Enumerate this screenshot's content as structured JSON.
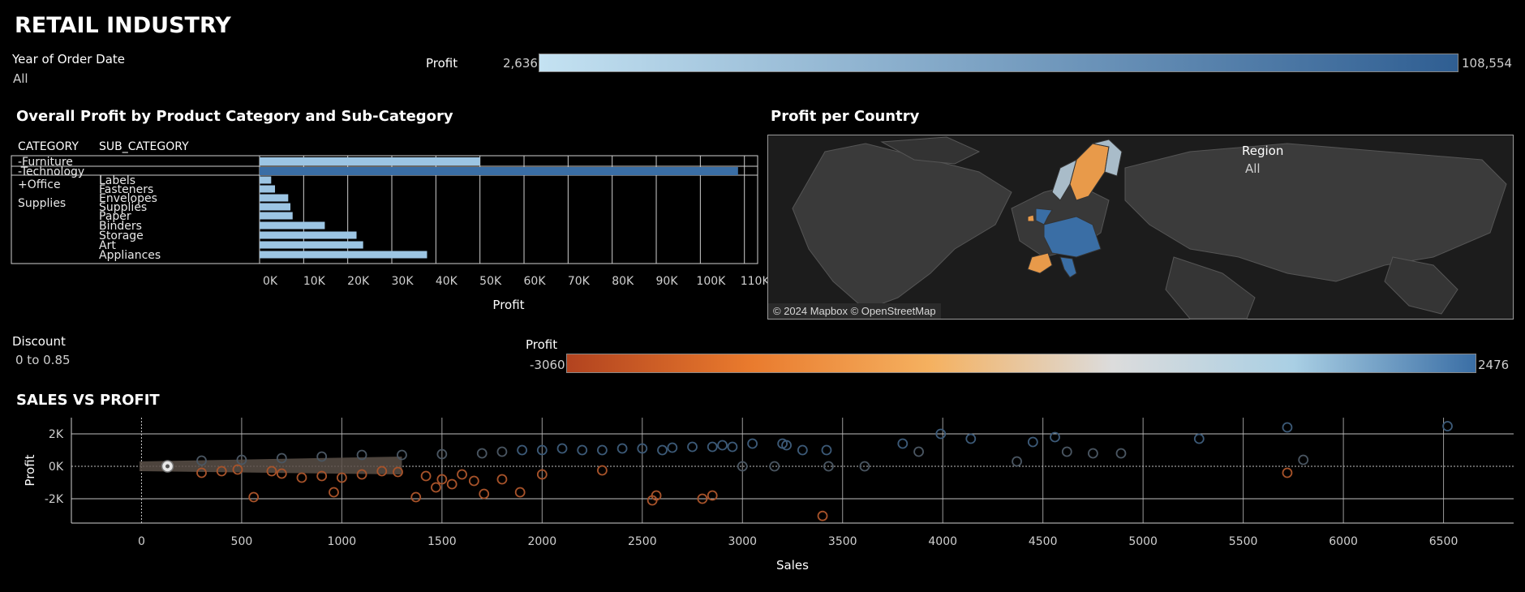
{
  "dashboard": {
    "title": "RETAIL INDUSTRY"
  },
  "filters": {
    "year": {
      "label": "Year of Order Date",
      "value": "All"
    },
    "discount": {
      "label": "Discount",
      "value": "0 to 0.85"
    },
    "region": {
      "label": "Region",
      "value": "All"
    }
  },
  "legend_top": {
    "label": "Profit",
    "min": "2,636",
    "max": "108,554",
    "colors": [
      "#c4e2f2",
      "#2f5e92"
    ]
  },
  "legend_mid": {
    "label": "Profit",
    "min": "-3060",
    "max": "2476",
    "colors": [
      "#b2431f",
      "#e97a2d",
      "#f5b160",
      "#dcdcdc",
      "#a9cfe4",
      "#3a6ea5"
    ]
  },
  "bar_section": {
    "title": "Overall Profit by Product Category and Sub-Category",
    "col_category": "CATEGORY",
    "col_subcategory": "SUB_CATEGORY"
  },
  "map_section": {
    "title": "Profit per Country",
    "attribution": "© 2024 Mapbox © OpenStreetMap"
  },
  "scatter_section": {
    "title": "SALES VS PROFIT"
  },
  "chart_data": [
    {
      "type": "bar",
      "orientation": "horizontal",
      "rows": [
        {
          "category": "-Furniture",
          "subcategory": "",
          "value": 50000
        },
        {
          "category": "-Technology",
          "subcategory": "",
          "value": 108554
        },
        {
          "category": "+Office Supplies",
          "subcategory": "Labels",
          "value": 2636
        },
        {
          "category": "",
          "subcategory": "Fasteners",
          "value": 3500
        },
        {
          "category": "",
          "subcategory": "Envelopes",
          "value": 6500
        },
        {
          "category": "",
          "subcategory": "Supplies",
          "value": 7000
        },
        {
          "category": "",
          "subcategory": "Paper",
          "value": 7500
        },
        {
          "category": "",
          "subcategory": "Binders",
          "value": 14800
        },
        {
          "category": "",
          "subcategory": "Storage",
          "value": 22000
        },
        {
          "category": "",
          "subcategory": "Art",
          "value": 23500
        },
        {
          "category": "",
          "subcategory": "Appliances",
          "value": 38000
        }
      ],
      "xlabel": "Profit",
      "xlim": [
        0,
        113000
      ],
      "ticks": [
        "0K",
        "10K",
        "20K",
        "30K",
        "40K",
        "50K",
        "60K",
        "70K",
        "80K",
        "90K",
        "100K",
        "110K"
      ],
      "grid": true
    },
    {
      "type": "scatter",
      "xlabel": "Sales",
      "ylabel": "Profit",
      "xlim": [
        -350,
        6850
      ],
      "ylim": [
        -3500,
        3000
      ],
      "xticks": [
        "0",
        "500",
        "1000",
        "1500",
        "2000",
        "2500",
        "3000",
        "3500",
        "4000",
        "4500",
        "5000",
        "5500",
        "6000",
        "6500"
      ],
      "yticks": [
        "2K",
        "0K",
        "-2K"
      ],
      "color_by": "Profit",
      "points": [
        [
          130,
          0
        ],
        [
          300,
          -400
        ],
        [
          400,
          -300
        ],
        [
          480,
          -200
        ],
        [
          560,
          -1900
        ],
        [
          650,
          -300
        ],
        [
          700,
          -450
        ],
        [
          800,
          -700
        ],
        [
          900,
          -600
        ],
        [
          960,
          -1600
        ],
        [
          1000,
          -700
        ],
        [
          1100,
          -500
        ],
        [
          1200,
          -300
        ],
        [
          1280,
          -350
        ],
        [
          1370,
          -1900
        ],
        [
          1420,
          -600
        ],
        [
          1470,
          -1300
        ],
        [
          1500,
          -800
        ],
        [
          1550,
          -1100
        ],
        [
          1600,
          -500
        ],
        [
          1660,
          -900
        ],
        [
          1710,
          -1700
        ],
        [
          1800,
          -800
        ],
        [
          1890,
          -1600
        ],
        [
          2000,
          -500
        ],
        [
          2300,
          -250
        ],
        [
          2550,
          -2100
        ],
        [
          2570,
          -1800
        ],
        [
          2800,
          -2000
        ],
        [
          2850,
          -1800
        ],
        [
          3400,
          -3060
        ],
        [
          5720,
          -400
        ],
        [
          300,
          350
        ],
        [
          500,
          400
        ],
        [
          700,
          500
        ],
        [
          900,
          600
        ],
        [
          1100,
          700
        ],
        [
          1300,
          700
        ],
        [
          1500,
          750
        ],
        [
          1700,
          800
        ],
        [
          1800,
          900
        ],
        [
          1900,
          1000
        ],
        [
          2000,
          1000
        ],
        [
          2100,
          1100
        ],
        [
          2200,
          1000
        ],
        [
          2300,
          1000
        ],
        [
          2400,
          1100
        ],
        [
          2500,
          1100
        ],
        [
          2600,
          1000
        ],
        [
          2650,
          1150
        ],
        [
          2750,
          1200
        ],
        [
          2850,
          1200
        ],
        [
          2900,
          1300
        ],
        [
          2950,
          1200
        ],
        [
          3050,
          1400
        ],
        [
          3200,
          1400
        ],
        [
          3220,
          1300
        ],
        [
          3300,
          1000
        ],
        [
          3420,
          1000
        ],
        [
          3800,
          1400
        ],
        [
          3880,
          900
        ],
        [
          3990,
          2000
        ],
        [
          4140,
          1700
        ],
        [
          4370,
          300
        ],
        [
          4450,
          1500
        ],
        [
          4560,
          1800
        ],
        [
          4620,
          900
        ],
        [
          4750,
          800
        ],
        [
          4890,
          800
        ],
        [
          5280,
          1700
        ],
        [
          5720,
          2400
        ],
        [
          5800,
          400
        ],
        [
          6520,
          2476
        ],
        [
          3000,
          0
        ],
        [
          3160,
          0
        ],
        [
          3430,
          0
        ],
        [
          3610,
          0
        ]
      ]
    }
  ]
}
